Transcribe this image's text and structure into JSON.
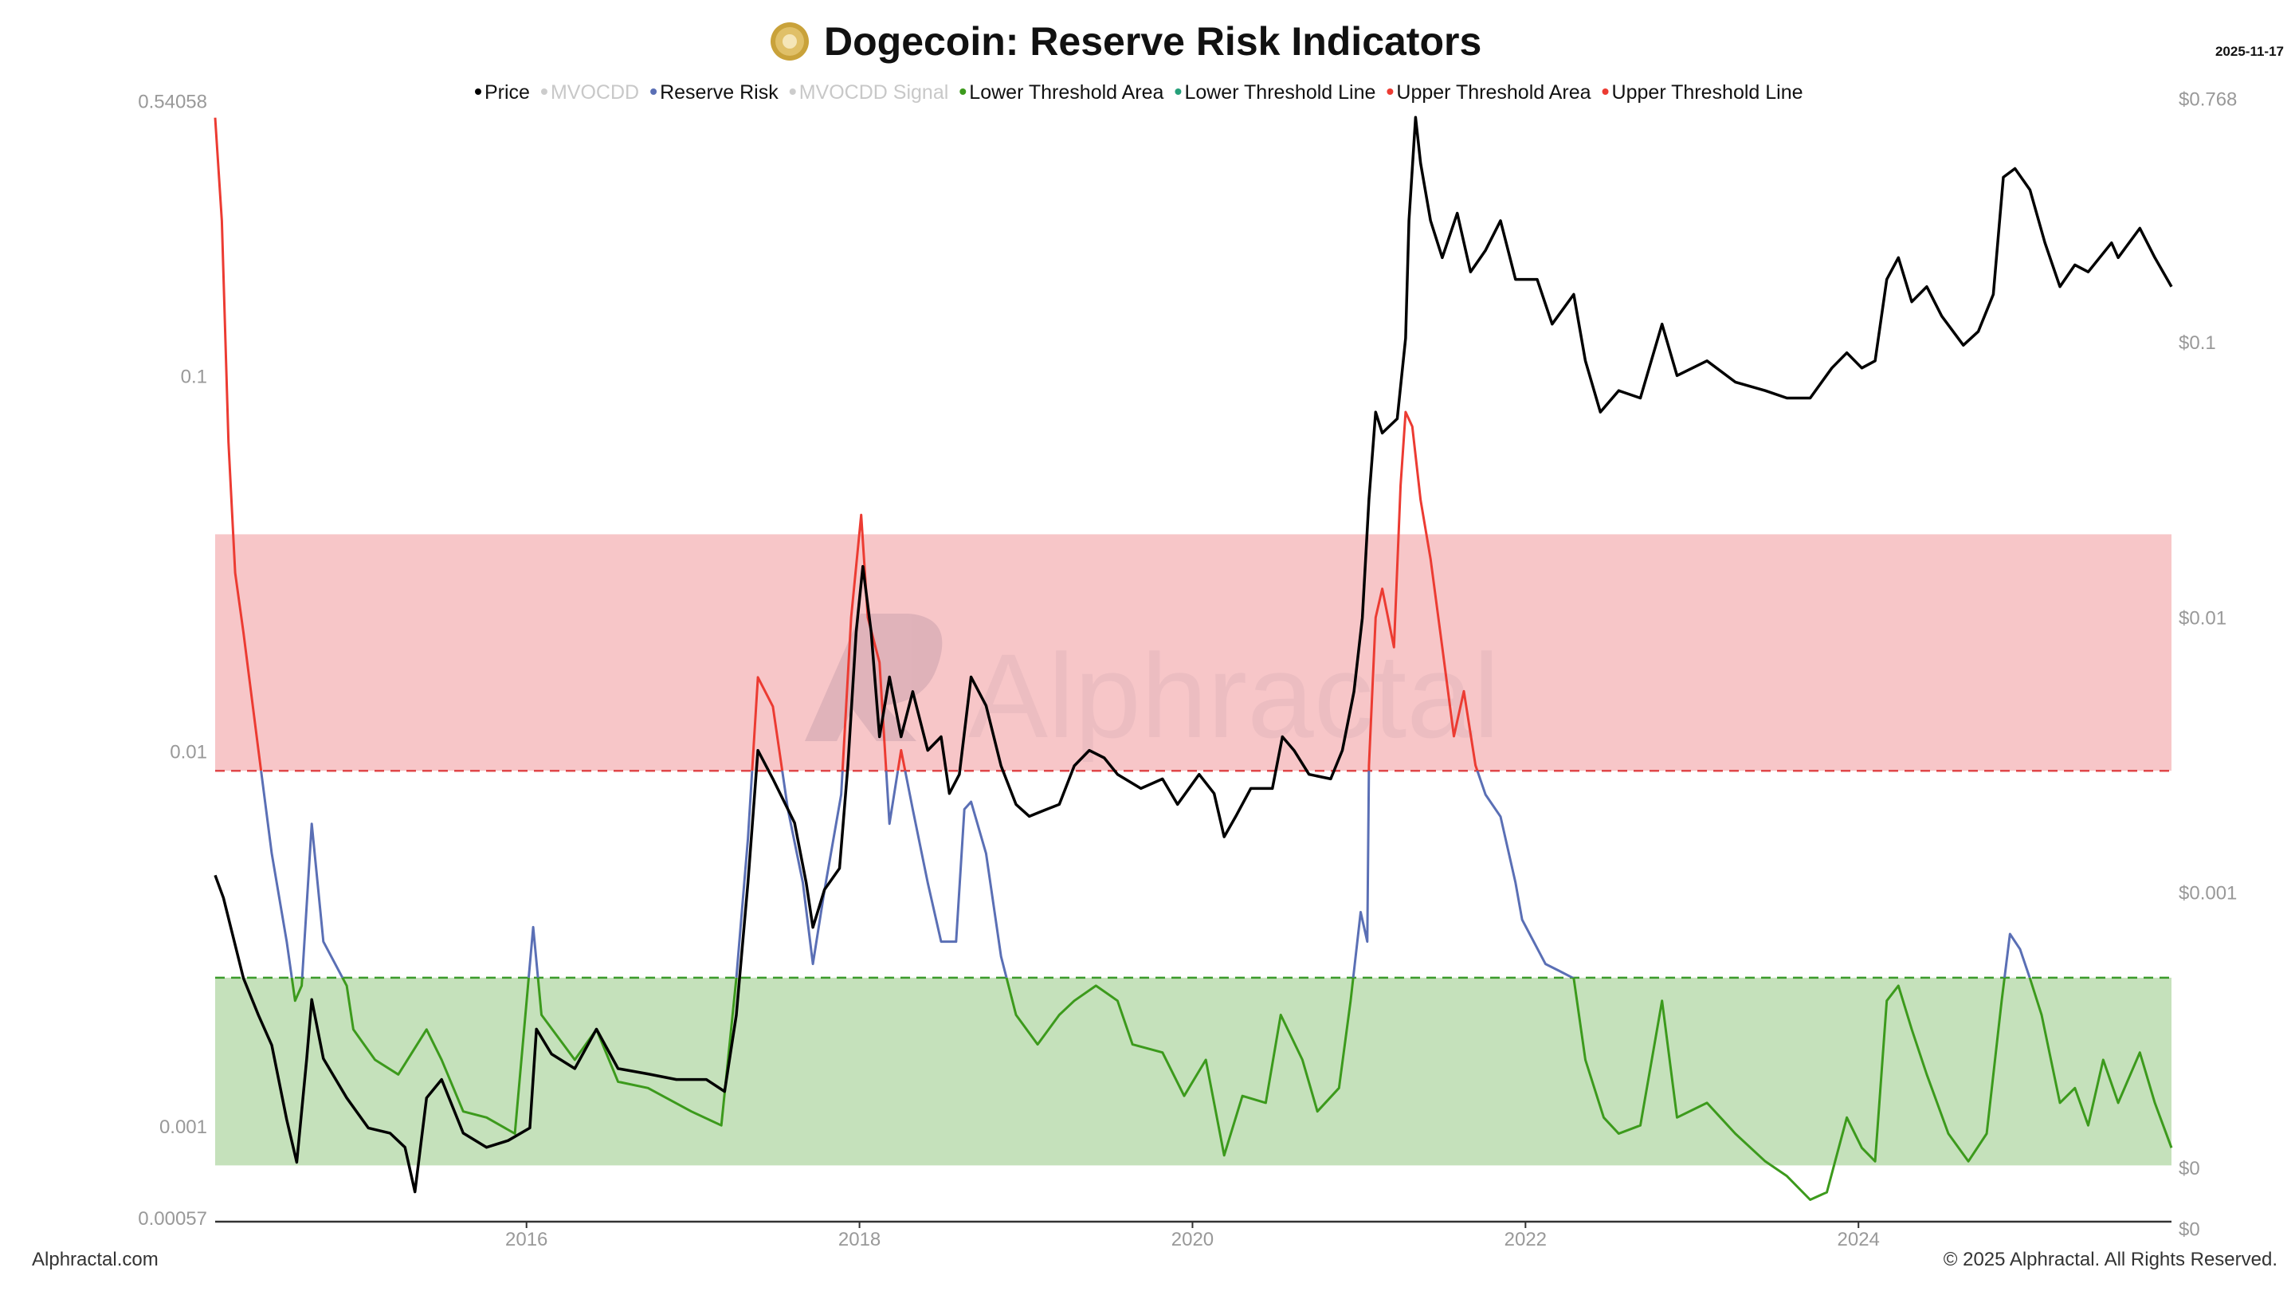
{
  "title": "Dogecoin: Reserve Risk Indicators",
  "date": "2025-11-17",
  "watermark": "Alphractal",
  "footer_left": "Alphractal.com",
  "footer_right": "© 2025 Alphractal. All Rights Reserved.",
  "colors": {
    "price": "#000000",
    "reserve_risk_mid": "#5a6fb5",
    "reserve_risk_high": "#ec3b32",
    "reserve_risk_low": "#3c9a1c",
    "upper_area": "#f7c6c8",
    "lower_area": "#c5e1bb",
    "upper_line": "#e0474a",
    "lower_line": "#3a9a2a",
    "disabled": "#cccccc"
  },
  "legend": [
    {
      "label": "Price",
      "color": "#000000",
      "active": true
    },
    {
      "label": "MVOCDD",
      "color": "#cccccc",
      "active": false
    },
    {
      "label": "Reserve Risk",
      "color": "#5a6fb5",
      "active": true
    },
    {
      "label": "MVOCDD Signal",
      "color": "#cccccc",
      "active": false
    },
    {
      "label": "Lower Threshold Area",
      "color": "#3c9a1c",
      "active": true
    },
    {
      "label": "Lower Threshold Line",
      "color": "#26a07a",
      "active": true
    },
    {
      "label": "Upper Threshold Area",
      "color": "#ec3b32",
      "active": true
    },
    {
      "label": "Upper Threshold Line",
      "color": "#ec3b32",
      "active": true
    }
  ],
  "chart_data": {
    "type": "line",
    "title": "Dogecoin: Reserve Risk Indicators",
    "x_range": [
      2014.13,
      2025.88
    ],
    "x_ticks": [
      {
        "value": 2016,
        "label": "2016"
      },
      {
        "value": 2018,
        "label": "2018"
      },
      {
        "value": 2020,
        "label": "2020"
      },
      {
        "value": 2022,
        "label": "2022"
      },
      {
        "value": 2024,
        "label": "2024"
      }
    ],
    "y_left": {
      "scale": "log",
      "range": [
        0.00057,
        0.54058
      ],
      "ticks": [
        {
          "value": 0.54058,
          "label": "0.54058"
        },
        {
          "value": 0.1,
          "label": "0.1"
        },
        {
          "value": 0.01,
          "label": "0.01"
        },
        {
          "value": 0.001,
          "label": "0.001"
        },
        {
          "value": 0.00057,
          "label": "0.00057"
        }
      ]
    },
    "y_right": {
      "scale": "log",
      "range": [
        6e-05,
        0.768
      ],
      "ticks": [
        {
          "value": 0.768,
          "label": "$0.768"
        },
        {
          "value": 0.1,
          "label": "$0.1"
        },
        {
          "value": 0.01,
          "label": "$0.01"
        },
        {
          "value": 0.001,
          "label": "$0.001"
        },
        {
          "value": 0.0001,
          "label": "$0"
        },
        {
          "value": 6e-05,
          "label": "$0"
        }
      ]
    },
    "thresholds": {
      "upper_line": 0.0089,
      "upper_area_top": 0.038,
      "lower_line": 0.0025,
      "lower_area_bottom": 0.00079
    },
    "series": [
      {
        "name": "Price",
        "axis": "right",
        "points": [
          [
            2014.13,
            0.00116
          ],
          [
            2014.18,
            0.00096
          ],
          [
            2014.3,
            0.00049
          ],
          [
            2014.39,
            0.00036
          ],
          [
            2014.47,
            0.00028
          ],
          [
            2014.56,
            0.00015
          ],
          [
            2014.62,
            0.000105
          ],
          [
            2014.68,
            0.00025
          ],
          [
            2014.71,
            0.00041
          ],
          [
            2014.78,
            0.00025
          ],
          [
            2014.92,
            0.00018
          ],
          [
            2015.05,
            0.00014
          ],
          [
            2015.18,
            0.000134
          ],
          [
            2015.27,
            0.000119
          ],
          [
            2015.33,
            8.2e-05
          ],
          [
            2015.4,
            0.00018
          ],
          [
            2015.49,
            0.00021
          ],
          [
            2015.62,
            0.000134
          ],
          [
            2015.76,
            0.000119
          ],
          [
            2015.89,
            0.000126
          ],
          [
            2016.02,
            0.00014
          ],
          [
            2016.06,
            0.00032
          ],
          [
            2016.15,
            0.00026
          ],
          [
            2016.29,
            0.00023
          ],
          [
            2016.42,
            0.00032
          ],
          [
            2016.55,
            0.00023
          ],
          [
            2016.73,
            0.00022
          ],
          [
            2016.9,
            0.00021
          ],
          [
            2017.08,
            0.00021
          ],
          [
            2017.19,
            0.00019
          ],
          [
            2017.26,
            0.00036
          ],
          [
            2017.33,
            0.00109
          ],
          [
            2017.39,
            0.0033
          ],
          [
            2017.48,
            0.0026
          ],
          [
            2017.61,
            0.0018
          ],
          [
            2017.68,
            0.00109
          ],
          [
            2017.72,
            0.00075
          ],
          [
            2017.79,
            0.00103
          ],
          [
            2017.88,
            0.00123
          ],
          [
            2017.93,
            0.0029
          ],
          [
            2017.98,
            0.0089
          ],
          [
            2018.02,
            0.0154
          ],
          [
            2018.07,
            0.0089
          ],
          [
            2018.12,
            0.0037
          ],
          [
            2018.18,
            0.0061
          ],
          [
            2018.25,
            0.0037
          ],
          [
            2018.32,
            0.0054
          ],
          [
            2018.41,
            0.0033
          ],
          [
            2018.49,
            0.0037
          ],
          [
            2018.54,
            0.0023
          ],
          [
            2018.6,
            0.0027
          ],
          [
            2018.67,
            0.0061
          ],
          [
            2018.76,
            0.0048
          ],
          [
            2018.85,
            0.0029
          ],
          [
            2018.94,
            0.0021
          ],
          [
            2019.02,
            0.0019
          ],
          [
            2019.11,
            0.002
          ],
          [
            2019.2,
            0.0021
          ],
          [
            2019.29,
            0.0029
          ],
          [
            2019.38,
            0.0033
          ],
          [
            2019.47,
            0.0031
          ],
          [
            2019.55,
            0.0027
          ],
          [
            2019.69,
            0.0024
          ],
          [
            2019.82,
            0.0026
          ],
          [
            2019.91,
            0.0021
          ],
          [
            2020.04,
            0.0027
          ],
          [
            2020.13,
            0.0023
          ],
          [
            2020.19,
            0.0016
          ],
          [
            2020.26,
            0.0019
          ],
          [
            2020.35,
            0.0024
          ],
          [
            2020.48,
            0.0024
          ],
          [
            2020.54,
            0.0037
          ],
          [
            2020.61,
            0.0033
          ],
          [
            2020.7,
            0.0027
          ],
          [
            2020.83,
            0.0026
          ],
          [
            2020.9,
            0.0033
          ],
          [
            2020.97,
            0.0054
          ],
          [
            2021.02,
            0.01
          ],
          [
            2021.06,
            0.027
          ],
          [
            2021.1,
            0.056
          ],
          [
            2021.14,
            0.047
          ],
          [
            2021.23,
            0.053
          ],
          [
            2021.28,
            0.104
          ],
          [
            2021.3,
            0.278
          ],
          [
            2021.34,
            0.66
          ],
          [
            2021.37,
            0.45
          ],
          [
            2021.43,
            0.278
          ],
          [
            2021.5,
            0.204
          ],
          [
            2021.59,
            0.296
          ],
          [
            2021.67,
            0.181
          ],
          [
            2021.76,
            0.217
          ],
          [
            2021.85,
            0.278
          ],
          [
            2021.94,
            0.17
          ],
          [
            2022.07,
            0.17
          ],
          [
            2022.16,
            0.117
          ],
          [
            2022.29,
            0.15
          ],
          [
            2022.36,
            0.086
          ],
          [
            2022.45,
            0.056
          ],
          [
            2022.56,
            0.067
          ],
          [
            2022.69,
            0.063
          ],
          [
            2022.82,
            0.117
          ],
          [
            2022.91,
            0.076
          ],
          [
            2023.09,
            0.086
          ],
          [
            2023.26,
            0.072
          ],
          [
            2023.44,
            0.067
          ],
          [
            2023.57,
            0.063
          ],
          [
            2023.71,
            0.063
          ],
          [
            2023.84,
            0.081
          ],
          [
            2023.93,
            0.092
          ],
          [
            2024.02,
            0.081
          ],
          [
            2024.1,
            0.086
          ],
          [
            2024.17,
            0.17
          ],
          [
            2024.24,
            0.204
          ],
          [
            2024.32,
            0.141
          ],
          [
            2024.41,
            0.16
          ],
          [
            2024.5,
            0.125
          ],
          [
            2024.63,
            0.098
          ],
          [
            2024.72,
            0.11
          ],
          [
            2024.81,
            0.15
          ],
          [
            2024.87,
            0.4
          ],
          [
            2024.94,
            0.43
          ],
          [
            2025.03,
            0.36
          ],
          [
            2025.12,
            0.231
          ],
          [
            2025.21,
            0.16
          ],
          [
            2025.3,
            0.192
          ],
          [
            2025.38,
            0.181
          ],
          [
            2025.52,
            0.231
          ],
          [
            2025.56,
            0.204
          ],
          [
            2025.69,
            0.261
          ],
          [
            2025.78,
            0.204
          ],
          [
            2025.88,
            0.16
          ]
        ]
      },
      {
        "name": "Reserve Risk",
        "axis": "left",
        "points": [
          [
            2014.13,
            0.49
          ],
          [
            2014.17,
            0.26
          ],
          [
            2014.21,
            0.067
          ],
          [
            2014.25,
            0.03
          ],
          [
            2014.3,
            0.0208
          ],
          [
            2014.39,
            0.0101
          ],
          [
            2014.47,
            0.00536
          ],
          [
            2014.56,
            0.00312
          ],
          [
            2014.61,
            0.00217
          ],
          [
            2014.65,
            0.00238
          ],
          [
            2014.71,
            0.00643
          ],
          [
            2014.78,
            0.00312
          ],
          [
            2014.92,
            0.00238
          ],
          [
            2014.96,
            0.00182
          ],
          [
            2015.09,
            0.00151
          ],
          [
            2015.23,
            0.00138
          ],
          [
            2015.4,
            0.00182
          ],
          [
            2015.49,
            0.00151
          ],
          [
            2015.62,
            0.0011
          ],
          [
            2015.76,
            0.00106
          ],
          [
            2015.93,
            0.00096
          ],
          [
            2016.04,
            0.00341
          ],
          [
            2016.09,
            0.00199
          ],
          [
            2016.29,
            0.00151
          ],
          [
            2016.42,
            0.00182
          ],
          [
            2016.55,
            0.00132
          ],
          [
            2016.73,
            0.00127
          ],
          [
            2016.99,
            0.0011
          ],
          [
            2017.17,
            0.00101
          ],
          [
            2017.26,
            0.00249
          ],
          [
            2017.33,
            0.00587
          ],
          [
            2017.39,
            0.0158
          ],
          [
            2017.48,
            0.0132
          ],
          [
            2017.57,
            0.00703
          ],
          [
            2017.66,
            0.00448
          ],
          [
            2017.72,
            0.00272
          ],
          [
            2017.79,
            0.00428
          ],
          [
            2017.89,
            0.00769
          ],
          [
            2017.95,
            0.0228
          ],
          [
            2018.01,
            0.0428
          ],
          [
            2018.05,
            0.0228
          ],
          [
            2018.12,
            0.0173
          ],
          [
            2018.18,
            0.00643
          ],
          [
            2018.25,
            0.0101
          ],
          [
            2018.32,
            0.00703
          ],
          [
            2018.41,
            0.00448
          ],
          [
            2018.49,
            0.00312
          ],
          [
            2018.58,
            0.00312
          ],
          [
            2018.63,
            0.00703
          ],
          [
            2018.67,
            0.00736
          ],
          [
            2018.76,
            0.00536
          ],
          [
            2018.85,
            0.00285
          ],
          [
            2018.94,
            0.00199
          ],
          [
            2019.07,
            0.00166
          ],
          [
            2019.2,
            0.00199
          ],
          [
            2019.29,
            0.00217
          ],
          [
            2019.42,
            0.00238
          ],
          [
            2019.55,
            0.00217
          ],
          [
            2019.64,
            0.00166
          ],
          [
            2019.82,
            0.00158
          ],
          [
            2019.95,
            0.00121
          ],
          [
            2020.08,
            0.00151
          ],
          [
            2020.19,
            0.00084
          ],
          [
            2020.3,
            0.00121
          ],
          [
            2020.44,
            0.00116
          ],
          [
            2020.53,
            0.00199
          ],
          [
            2020.66,
            0.00151
          ],
          [
            2020.75,
            0.0011
          ],
          [
            2020.88,
            0.00127
          ],
          [
            2020.95,
            0.00217
          ],
          [
            2021.01,
            0.00374
          ],
          [
            2021.05,
            0.00312
          ],
          [
            2021.06,
            0.0092
          ],
          [
            2021.1,
            0.0228
          ],
          [
            2021.14,
            0.0272
          ],
          [
            2021.21,
            0.019
          ],
          [
            2021.25,
            0.0513
          ],
          [
            2021.28,
            0.0805
          ],
          [
            2021.32,
            0.0736
          ],
          [
            2021.37,
            0.0469
          ],
          [
            2021.43,
            0.0327
          ],
          [
            2021.5,
            0.019
          ],
          [
            2021.57,
            0.011
          ],
          [
            2021.63,
            0.0145
          ],
          [
            2021.7,
            0.0092
          ],
          [
            2021.76,
            0.00769
          ],
          [
            2021.85,
            0.00672
          ],
          [
            2021.94,
            0.00448
          ],
          [
            2021.98,
            0.00357
          ],
          [
            2022.12,
            0.00272
          ],
          [
            2022.2,
            0.00261
          ],
          [
            2022.29,
            0.00249
          ],
          [
            2022.36,
            0.00151
          ],
          [
            2022.47,
            0.00106
          ],
          [
            2022.56,
            0.00096
          ],
          [
            2022.69,
            0.00101
          ],
          [
            2022.82,
            0.00217
          ],
          [
            2022.91,
            0.00106
          ],
          [
            2023.09,
            0.00116
          ],
          [
            2023.26,
            0.00096
          ],
          [
            2023.44,
            0.00081
          ],
          [
            2023.57,
            0.00074
          ],
          [
            2023.71,
            0.00064
          ],
          [
            2023.81,
            0.00067
          ],
          [
            2023.93,
            0.00106
          ],
          [
            2024.02,
            0.00088
          ],
          [
            2024.1,
            0.00081
          ],
          [
            2024.17,
            0.00217
          ],
          [
            2024.24,
            0.00238
          ],
          [
            2024.32,
            0.00182
          ],
          [
            2024.41,
            0.00138
          ],
          [
            2024.54,
            0.00096
          ],
          [
            2024.66,
            0.00081
          ],
          [
            2024.77,
            0.00096
          ],
          [
            2024.86,
            0.00217
          ],
          [
            2024.91,
            0.00327
          ],
          [
            2024.97,
            0.00298
          ],
          [
            2025.03,
            0.00249
          ],
          [
            2025.1,
            0.00199
          ],
          [
            2025.21,
            0.00116
          ],
          [
            2025.3,
            0.00127
          ],
          [
            2025.38,
            0.00101
          ],
          [
            2025.47,
            0.00151
          ],
          [
            2025.56,
            0.00116
          ],
          [
            2025.69,
            0.00158
          ],
          [
            2025.78,
            0.00116
          ],
          [
            2025.88,
            0.00088
          ]
        ]
      }
    ]
  }
}
